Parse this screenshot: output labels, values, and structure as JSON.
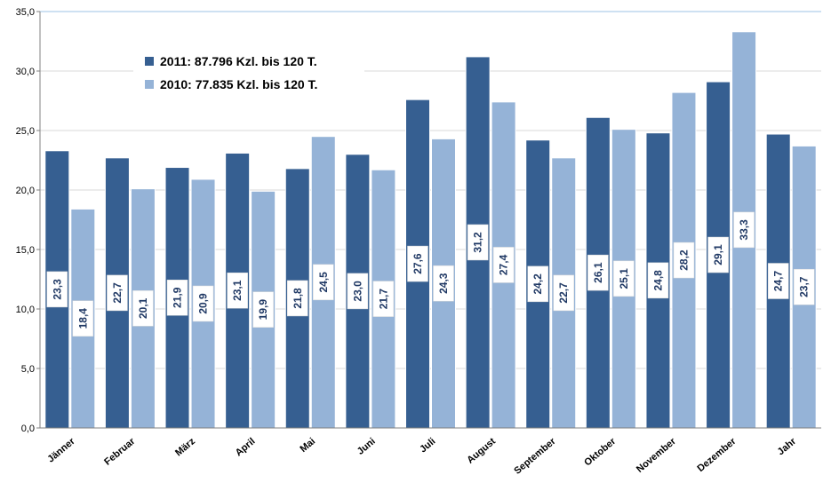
{
  "chart_data": {
    "type": "bar",
    "categories": [
      "Jänner",
      "Februar",
      "März",
      "April",
      "Mai",
      "Juni",
      "Juli",
      "August",
      "September",
      "Oktober",
      "November",
      "Dezember",
      "Jahr"
    ],
    "series": [
      {
        "name": "2011: 87.796 Kzl. bis 120 T.",
        "color": "#365f91",
        "values": [
          23.3,
          22.7,
          21.9,
          23.1,
          21.8,
          23.0,
          27.6,
          31.2,
          24.2,
          26.1,
          24.8,
          29.1,
          24.7
        ],
        "labels": [
          "23,3",
          "22,7",
          "21,9",
          "23,1",
          "21,8",
          "23,0",
          "27,6",
          "31,2",
          "24,2",
          "26,1",
          "24,8",
          "29,1",
          "24,7"
        ]
      },
      {
        "name": "2010: 77.835 Kzl. bis 120 T.",
        "color": "#95b3d7",
        "values": [
          18.4,
          20.1,
          20.9,
          19.9,
          24.5,
          21.7,
          24.3,
          27.4,
          22.7,
          25.1,
          28.2,
          33.3,
          23.7
        ],
        "labels": [
          "18,4",
          "20,1",
          "20,9",
          "19,9",
          "24,5",
          "21,7",
          "24,3",
          "27,4",
          "22,7",
          "25,1",
          "28,2",
          "33,3",
          "23,7"
        ]
      }
    ],
    "ylim": [
      0,
      35
    ],
    "yticks": [
      0,
      5,
      10,
      15,
      20,
      25,
      30,
      35
    ],
    "ytick_labels": [
      "0,0",
      "5,0",
      "10,0",
      "15,0",
      "20,0",
      "25,0",
      "30,0",
      "35,0"
    ],
    "title": "",
    "xlabel": "",
    "ylabel": "",
    "grid": true,
    "legend_position": "top-left"
  }
}
